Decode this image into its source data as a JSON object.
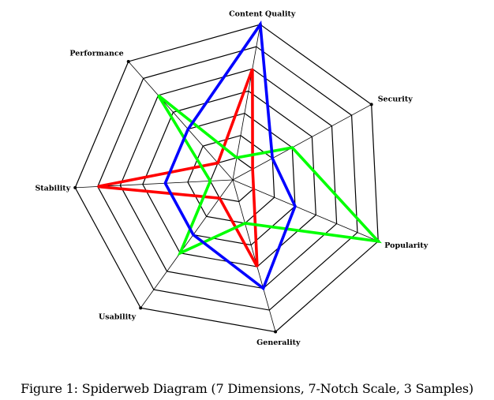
{
  "chart_data": {
    "type": "radar",
    "axes": [
      "Content Quality",
      "Security",
      "Popularity",
      "Generality",
      "Usability",
      "Stability",
      "Performance"
    ],
    "scale_max": 7,
    "notches": 7,
    "series": [
      {
        "color": "#ff0000",
        "values": [
          5,
          1,
          1,
          4,
          1,
          6,
          1
        ]
      },
      {
        "color": "#00ff00",
        "values": [
          1,
          3,
          7,
          2,
          4,
          1,
          5
        ]
      },
      {
        "color": "#0000ff",
        "values": [
          7,
          2,
          3,
          5,
          3,
          3,
          3
        ]
      }
    ],
    "grid_color": "#000000"
  },
  "caption": "Figure 1: Spiderweb Diagram (7 Dimensions, 7-Notch Scale, 3 Samples)"
}
